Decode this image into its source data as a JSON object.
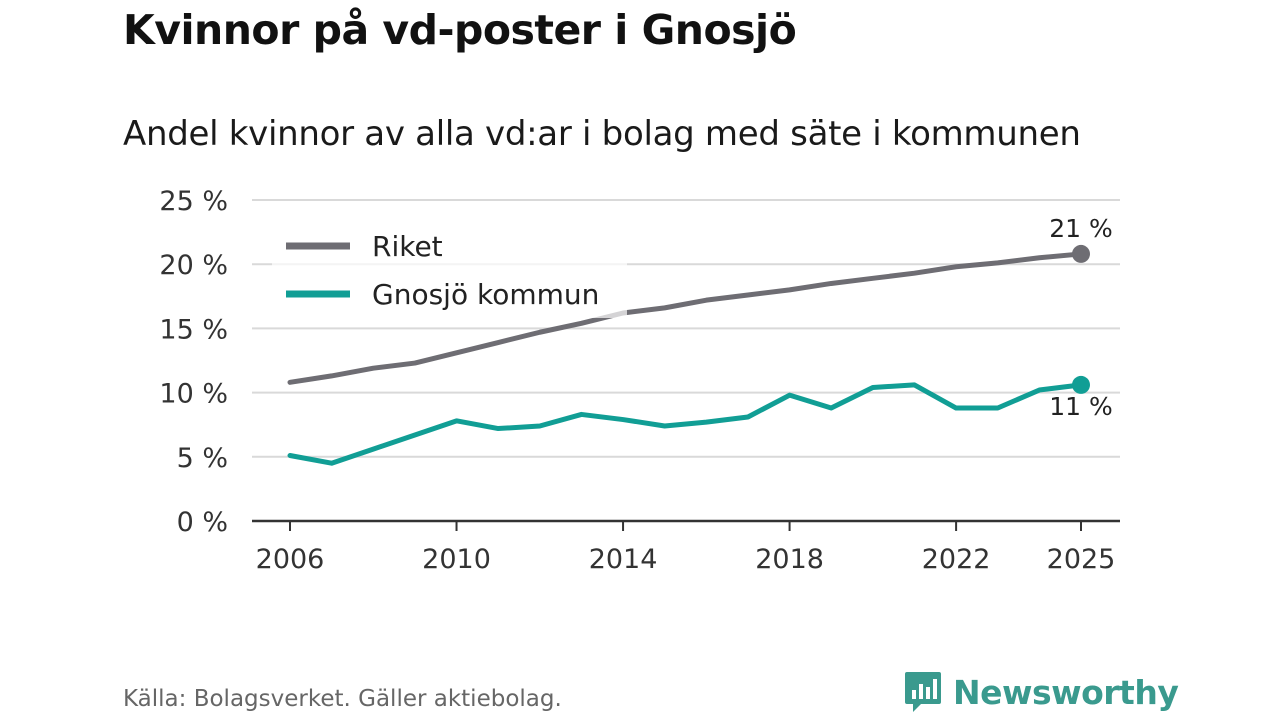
{
  "title": "Kvinnor på vd-poster i Gnosjö",
  "subtitle": "Andel kvinnor av alla vd:ar i bolag med säte i kommunen",
  "source": "Källa: Bolagsverket. Gäller aktiebolag.",
  "brand": "Newsworthy",
  "colors": {
    "riket": "#6e6d73",
    "gnosjo": "#119e95",
    "grid": "#d9d9d9",
    "axis": "#333333"
  },
  "chart_data": {
    "type": "line",
    "title": "Kvinnor på vd-poster i Gnosjö",
    "subtitle": "Andel kvinnor av alla vd:ar i bolag med säte i kommunen",
    "xlabel": "",
    "ylabel": "",
    "ylim": [
      0,
      25
    ],
    "xlim": [
      2006,
      2025
    ],
    "y_ticks": [
      {
        "value": 0,
        "label": "0 %"
      },
      {
        "value": 5,
        "label": "5 %"
      },
      {
        "value": 10,
        "label": "10 %"
      },
      {
        "value": 15,
        "label": "15 %"
      },
      {
        "value": 20,
        "label": "20 %"
      },
      {
        "value": 25,
        "label": "25 %"
      }
    ],
    "x_ticks": [
      {
        "value": 2006,
        "label": "2006"
      },
      {
        "value": 2010,
        "label": "2010"
      },
      {
        "value": 2014,
        "label": "2014"
      },
      {
        "value": 2018,
        "label": "2018"
      },
      {
        "value": 2022,
        "label": "2022"
      },
      {
        "value": 2025,
        "label": "2025"
      }
    ],
    "legend_position": "top-left",
    "grid": true,
    "x": [
      2006,
      2007,
      2008,
      2009,
      2010,
      2011,
      2012,
      2013,
      2014,
      2015,
      2016,
      2017,
      2018,
      2019,
      2020,
      2021,
      2022,
      2023,
      2024,
      2025
    ],
    "series": [
      {
        "key": "riket",
        "name": "Riket",
        "values": [
          10.8,
          11.3,
          11.9,
          12.3,
          13.1,
          13.9,
          14.7,
          15.4,
          16.2,
          16.6,
          17.2,
          17.6,
          18.0,
          18.5,
          18.9,
          19.3,
          19.8,
          20.1,
          20.5,
          20.8
        ],
        "end_label": "21 %",
        "end_label_pos": "above"
      },
      {
        "key": "gnosjo",
        "name": "Gnosjö kommun",
        "values": [
          5.1,
          4.5,
          5.6,
          6.7,
          7.8,
          7.2,
          7.4,
          8.3,
          7.9,
          7.4,
          7.7,
          8.1,
          9.8,
          8.8,
          10.4,
          10.6,
          8.8,
          8.8,
          10.2,
          10.6
        ],
        "end_label": "11 %",
        "end_label_pos": "below"
      }
    ]
  }
}
